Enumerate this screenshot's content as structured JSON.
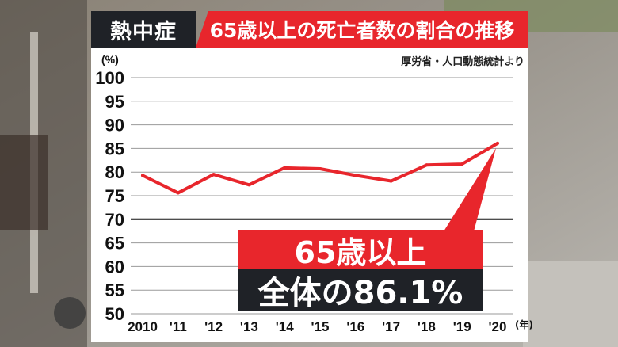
{
  "title": {
    "tag": "熱中症",
    "main": "65歳以上の死亡者数の割合の推移"
  },
  "source": "厚労省・人口動態統計より",
  "callout": {
    "line1": "65歳以上",
    "line2": "全体の86.1%"
  },
  "colors": {
    "accent_red": "#e8262c",
    "dark": "#1f2227",
    "line": "#e8262c"
  },
  "chart_data": {
    "type": "line",
    "y_unit_label": "(%)",
    "x_unit_label": "(年)",
    "ylim": [
      50,
      100
    ],
    "y_ticks": [
      50,
      55,
      60,
      65,
      70,
      75,
      80,
      85,
      90,
      95,
      100
    ],
    "categories": [
      "2010",
      "'11",
      "'12",
      "'13",
      "'14",
      "'15",
      "'16",
      "'17",
      "'18",
      "'19",
      "'20"
    ],
    "series": [
      {
        "values": [
          79.3,
          75.6,
          79.5,
          77.3,
          80.9,
          80.7,
          79.3,
          78.1,
          81.5,
          81.7,
          86.1
        ]
      }
    ],
    "grid": true
  }
}
